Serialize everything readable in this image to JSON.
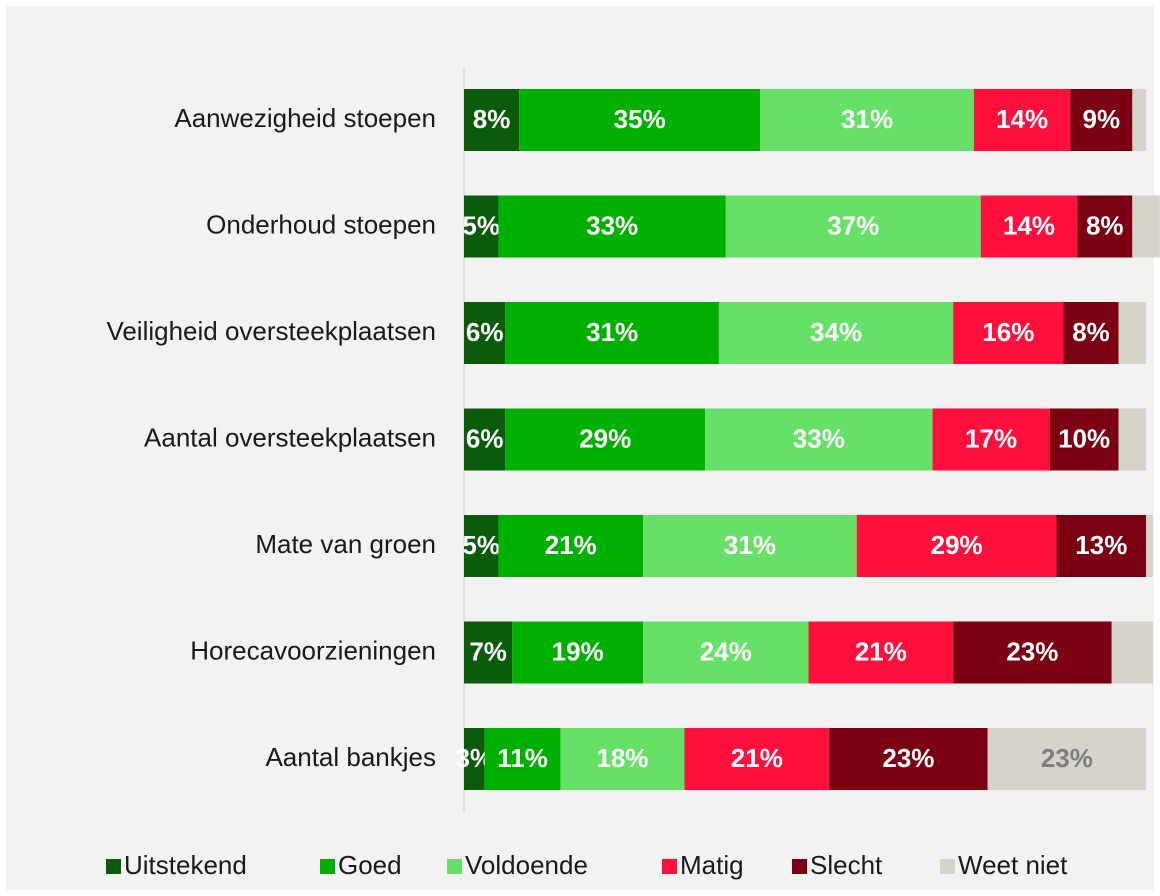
{
  "chart_data": {
    "type": "stacked_bar_horizontal",
    "categories": [
      "Aanwezigheid stoepen",
      "Onderhoud stoepen",
      "Veiligheid oversteekplaatsen",
      "Aantal oversteekplaatsen",
      "Mate van groen",
      "Horecavoorzieningen",
      "Aantal bankjes"
    ],
    "xlim": [
      0,
      100
    ],
    "legend": "bottom",
    "series": [
      {
        "name": "Uitstekend",
        "color": "#0a5c0a",
        "values": [
          8,
          5,
          6,
          6,
          5,
          7,
          3
        ],
        "value_labels": [
          "8%",
          "5%",
          "6%",
          "6%",
          "5%",
          "7%",
          "3%"
        ]
      },
      {
        "name": "Goed",
        "color": "#00b000",
        "values": [
          35,
          33,
          31,
          29,
          21,
          19,
          11
        ],
        "value_labels": [
          "35%",
          "33%",
          "31%",
          "29%",
          "21%",
          "19%",
          "11%"
        ]
      },
      {
        "name": "Voldoende",
        "color": "#66e066",
        "values": [
          31,
          37,
          34,
          33,
          31,
          24,
          18
        ],
        "value_labels": [
          "31%",
          "37%",
          "34%",
          "33%",
          "31%",
          "24%",
          "18%"
        ]
      },
      {
        "name": "Matig",
        "color": "#ff0f3c",
        "values": [
          14,
          14,
          16,
          17,
          29,
          21,
          21
        ],
        "value_labels": [
          "14%",
          "14%",
          "16%",
          "17%",
          "29%",
          "21%",
          "21%"
        ]
      },
      {
        "name": "Slecht",
        "color": "#7a0012",
        "values": [
          9,
          8,
          8,
          10,
          13,
          23,
          23
        ],
        "value_labels": [
          "9%",
          "8%",
          "8%",
          "10%",
          "13%",
          "23%",
          "23%"
        ]
      },
      {
        "name": "Weet niet",
        "color": "#d5d3ca",
        "label_color": "#7f7f7f",
        "values": [
          2,
          4,
          4,
          4,
          1,
          6,
          23
        ],
        "value_labels": [
          null,
          null,
          null,
          null,
          null,
          null,
          "23%"
        ]
      }
    ]
  }
}
